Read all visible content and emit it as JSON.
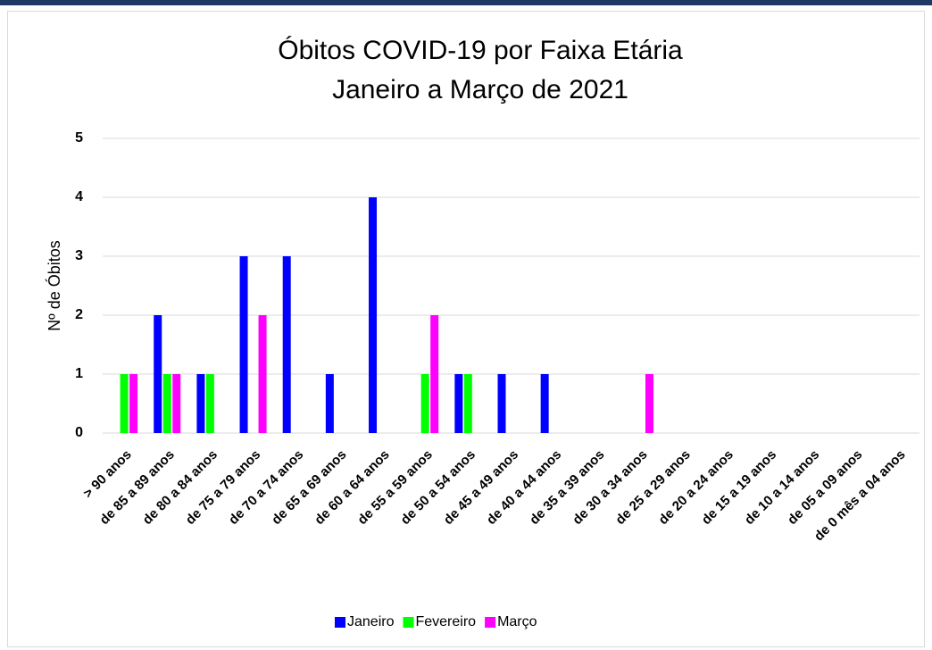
{
  "chart_data": {
    "type": "bar",
    "title": [
      "Óbitos COVID-19 por Faixa Etária",
      "Janeiro a Março de 2021"
    ],
    "y_label": "Nº de Óbitos",
    "categories": [
      "> 90 anos",
      "de 85 a 89 anos",
      "de 80 a 84 anos",
      "de 75 a 79 anos",
      "de 70 a 74 anos",
      "de 65 a 69 anos",
      "de 60 a 64 anos",
      "de 55 a 59 anos",
      "de 50 a 54 anos",
      "de 45 a 49 anos",
      "de 40 a 44 anos",
      "de 35 a 39 anos",
      "de 30 a 34 anos",
      "de 25 a 29 anos",
      "de 20 a 24 anos",
      "de 15 a 19 anos",
      "de 10 a 14 anos",
      "de 05 a 09 anos",
      "de 0 mês a  04 anos"
    ],
    "series": [
      {
        "name": "Janeiro",
        "color": "#0000ff",
        "values": [
          0,
          2,
          1,
          3,
          3,
          1,
          4,
          0,
          1,
          1,
          1,
          0,
          0,
          0,
          0,
          0,
          0,
          0,
          0
        ]
      },
      {
        "name": "Fevereiro",
        "color": "#00ff00",
        "values": [
          1,
          1,
          1,
          0,
          0,
          0,
          0,
          1,
          1,
          0,
          0,
          0,
          0,
          0,
          0,
          0,
          0,
          0,
          0
        ]
      },
      {
        "name": "Março",
        "color": "#ff00ff",
        "values": [
          1,
          1,
          0,
          2,
          0,
          0,
          0,
          2,
          0,
          0,
          0,
          0,
          1,
          0,
          0,
          0,
          0,
          0,
          0
        ]
      }
    ],
    "ylim": [
      0,
      5
    ],
    "yticks": [
      0,
      1,
      2,
      3,
      4,
      5
    ],
    "grid": true,
    "legend": "bottom"
  }
}
